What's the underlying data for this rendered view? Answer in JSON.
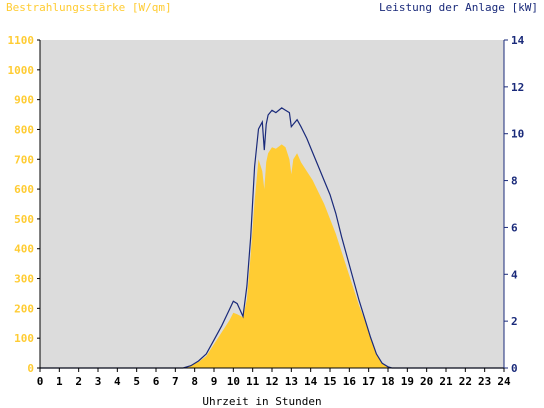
{
  "chart_data": {
    "type": "area",
    "left_axis_label": "Bestrahlungsstärke [W/qm]",
    "right_axis_label": "Leistung der Anlage [kW]",
    "xlabel": "Uhrzeit in Stunden",
    "xlim": [
      0,
      24
    ],
    "ylim_left": [
      0,
      1100
    ],
    "ylim_right": [
      0,
      14
    ],
    "x_ticks": [
      "0",
      "1",
      "2",
      "3",
      "4",
      "5",
      "6",
      "7",
      "8",
      "9",
      "10",
      "11",
      "12",
      "13",
      "14",
      "15",
      "16",
      "17",
      "18",
      "19",
      "20",
      "21",
      "22",
      "23",
      "24"
    ],
    "y_ticks_left": [
      "0",
      "100",
      "200",
      "300",
      "400",
      "500",
      "600",
      "700",
      "800",
      "900",
      "1000",
      "1100"
    ],
    "y_ticks_right": [
      "0",
      "2",
      "4",
      "6",
      "8",
      "10",
      "12",
      "14"
    ],
    "grid": false,
    "colors": {
      "plot_background": "#dcdcdc",
      "irradiance": "#ffcc33",
      "power": "#1a2a7a",
      "left_axis_text": "#ffcc33",
      "right_axis_text": "#1a2a7a"
    },
    "series": [
      {
        "name": "Bestrahlungsstärke [W/qm]",
        "axis": "left",
        "style": "area",
        "x": [
          0,
          7.4,
          7.8,
          8.2,
          8.6,
          9.0,
          9.4,
          9.8,
          10.0,
          10.2,
          10.5,
          10.7,
          10.9,
          11.1,
          11.3,
          11.5,
          11.6,
          11.7,
          11.8,
          12.0,
          12.2,
          12.5,
          12.7,
          12.9,
          13.0,
          13.1,
          13.3,
          13.5,
          13.8,
          14.1,
          14.4,
          14.7,
          15.0,
          15.3,
          15.6,
          15.9,
          16.2,
          16.5,
          16.8,
          17.1,
          17.4,
          17.7,
          18.0,
          18.2,
          18.4,
          24
        ],
        "y": [
          0,
          0,
          10,
          20,
          40,
          80,
          120,
          160,
          185,
          180,
          170,
          230,
          380,
          560,
          700,
          660,
          600,
          690,
          720,
          740,
          735,
          750,
          740,
          700,
          650,
          700,
          720,
          690,
          660,
          630,
          590,
          550,
          500,
          450,
          390,
          330,
          270,
          210,
          160,
          100,
          50,
          15,
          3,
          0,
          0,
          0
        ]
      },
      {
        "name": "Leistung der Anlage [kW]",
        "axis": "right",
        "style": "line",
        "x": [
          0,
          7.4,
          7.8,
          8.2,
          8.6,
          9.0,
          9.4,
          9.8,
          10.0,
          10.2,
          10.5,
          10.7,
          10.9,
          11.1,
          11.3,
          11.5,
          11.6,
          11.7,
          11.8,
          12.0,
          12.2,
          12.5,
          12.7,
          12.9,
          13.0,
          13.1,
          13.3,
          13.5,
          13.8,
          14.1,
          14.4,
          14.7,
          15.0,
          15.3,
          15.6,
          15.9,
          16.2,
          16.5,
          16.8,
          17.1,
          17.4,
          17.7,
          18.0,
          18.2,
          18.4,
          24
        ],
        "y": [
          0,
          0,
          0.1,
          0.3,
          0.6,
          1.2,
          1.8,
          2.5,
          2.85,
          2.75,
          2.2,
          3.5,
          5.6,
          8.6,
          10.2,
          10.5,
          9.3,
          10.4,
          10.8,
          11.0,
          10.9,
          11.1,
          11.0,
          10.9,
          10.3,
          10.4,
          10.6,
          10.3,
          9.8,
          9.2,
          8.6,
          8.0,
          7.4,
          6.6,
          5.6,
          4.7,
          3.8,
          2.9,
          2.1,
          1.3,
          0.6,
          0.2,
          0.05,
          0,
          0,
          0
        ]
      }
    ]
  }
}
